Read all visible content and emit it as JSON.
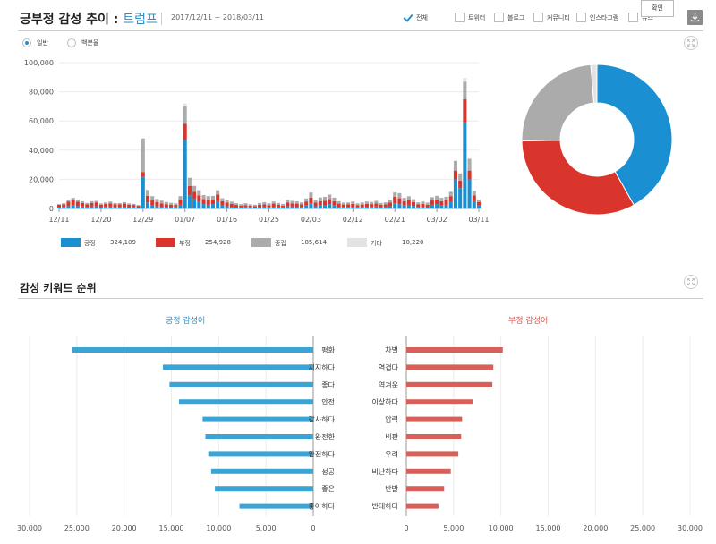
{
  "header": {
    "title": "긍부정 감성 추이",
    "colon": " : ",
    "subject": "트럼프",
    "date_range": "2017/12/11 ~ 2018/03/11",
    "filters": [
      {
        "label": "전체",
        "checked": true
      },
      {
        "label": "트위터",
        "checked": false
      },
      {
        "label": "블로그",
        "checked": false
      },
      {
        "label": "커뮤니티",
        "checked": false
      },
      {
        "label": "인스타그램",
        "checked": false
      },
      {
        "label": "뉴스",
        "checked": false
      }
    ],
    "confirm_label": "확인"
  },
  "view_options": [
    {
      "label": "일반",
      "selected": true
    },
    {
      "label": "백분율",
      "selected": false
    }
  ],
  "legend": [
    {
      "name": "긍정",
      "value": "324,109",
      "color": "#1a8fd1"
    },
    {
      "name": "부정",
      "value": "254,928",
      "color": "#d9352c"
    },
    {
      "name": "중립",
      "value": "185,614",
      "color": "#ababab"
    },
    {
      "name": "기타",
      "value": "10,220",
      "color": "#e3e3e3"
    }
  ],
  "keywords_section": {
    "title": "감성 키워드 순위",
    "positive_title": "긍정 감성어",
    "negative_title": "부정 감성어"
  },
  "chart_data": [
    {
      "type": "bar",
      "stacked": true,
      "title": "긍부정 감성 추이",
      "y_ticks": [
        "100,000",
        "80,000",
        "60,000",
        "40,000",
        "20,000",
        "0"
      ],
      "ylim": [
        0,
        100000
      ],
      "x_tick_labels": [
        "12/11",
        "12/20",
        "12/29",
        "01/07",
        "01/16",
        "01/25",
        "02/03",
        "02/12",
        "02/21",
        "03/02",
        "03/11"
      ],
      "x_tick_indices": [
        0,
        9,
        18,
        27,
        36,
        45,
        54,
        63,
        72,
        81,
        90
      ],
      "series": [
        {
          "name": "긍정",
          "color": "#1a8fd1",
          "values": [
            900,
            1100,
            1600,
            2300,
            1600,
            1300,
            1000,
            1300,
            1500,
            900,
            1100,
            1300,
            1000,
            1000,
            1200,
            900,
            800,
            600,
            22000,
            4200,
            2000,
            1500,
            1200,
            1000,
            900,
            800,
            2500,
            47000,
            9000,
            6500,
            4500,
            3000,
            2500,
            3000,
            5000,
            2000,
            1500,
            1200,
            900,
            700,
            800,
            700,
            600,
            900,
            1000,
            800,
            1200,
            900,
            700,
            1500,
            1300,
            1200,
            1000,
            2000,
            3500,
            1500,
            2000,
            2200,
            3000,
            2000,
            1200,
            1000,
            1000,
            1200,
            800,
            1000,
            1200,
            1100,
            1300,
            900,
            1000,
            1500,
            3500,
            3000,
            2000,
            2500,
            1800,
            1000,
            1200,
            900,
            2500,
            3000,
            2000,
            2500,
            4500,
            20000,
            14000,
            59000,
            20000,
            5000,
            2000
          ]
        },
        {
          "name": "부정",
          "color": "#d9352c",
          "values": [
            1600,
            1800,
            3200,
            3700,
            3000,
            2400,
            1800,
            2400,
            2700,
            1700,
            2000,
            2200,
            1800,
            1800,
            2100,
            1700,
            1600,
            1200,
            3000,
            4500,
            3500,
            2800,
            2300,
            1900,
            1700,
            1600,
            3800,
            11000,
            6500,
            5000,
            4500,
            3500,
            3500,
            3300,
            4500,
            3000,
            2500,
            2000,
            1500,
            1300,
            1500,
            1200,
            1100,
            1600,
            1800,
            1500,
            2100,
            1600,
            1300,
            2500,
            2200,
            2100,
            1800,
            2800,
            4000,
            2500,
            3000,
            3100,
            3500,
            3000,
            2100,
            1700,
            1800,
            2000,
            1500,
            1700,
            2000,
            1900,
            2200,
            1600,
            1800,
            2500,
            4500,
            4000,
            3000,
            3300,
            2600,
            1800,
            2000,
            1700,
            3000,
            3200,
            3000,
            3100,
            4000,
            6000,
            5000,
            16000,
            6000,
            4000,
            2400
          ]
        },
        {
          "name": "중립",
          "color": "#ababab",
          "values": [
            500,
            700,
            1200,
            1300,
            1400,
            1300,
            1000,
            1300,
            1000,
            900,
            1100,
            1300,
            900,
            900,
            1000,
            900,
            800,
            600,
            23000,
            4000,
            3000,
            2200,
            1900,
            1500,
            1300,
            1100,
            2200,
            12000,
            5500,
            4000,
            3500,
            2700,
            2500,
            2300,
            3000,
            2000,
            1700,
            1500,
            1200,
            1000,
            1300,
            1000,
            900,
            1300,
            1500,
            1300,
            1500,
            1300,
            1100,
            1900,
            1700,
            1600,
            1400,
            2100,
            3500,
            2000,
            2600,
            2700,
            3000,
            2400,
            1700,
            1300,
            1400,
            1600,
            1200,
            1400,
            1600,
            1500,
            1700,
            1300,
            1400,
            2000,
            3000,
            3500,
            2300,
            2600,
            2000,
            1400,
            1600,
            1400,
            2200,
            2500,
            2300,
            2400,
            3000,
            6500,
            5000,
            12000,
            8000,
            3000,
            1500
          ]
        },
        {
          "name": "기타",
          "color": "#e3e3e3",
          "values": [
            100,
            100,
            100,
            150,
            100,
            100,
            100,
            100,
            100,
            100,
            100,
            100,
            100,
            100,
            100,
            100,
            100,
            100,
            200,
            150,
            150,
            100,
            100,
            100,
            100,
            100,
            150,
            2000,
            300,
            200,
            200,
            100,
            100,
            100,
            150,
            100,
            100,
            100,
            100,
            100,
            100,
            100,
            100,
            100,
            100,
            100,
            100,
            100,
            100,
            100,
            100,
            100,
            100,
            100,
            150,
            100,
            100,
            100,
            150,
            100,
            100,
            100,
            100,
            100,
            100,
            100,
            100,
            100,
            100,
            100,
            100,
            100,
            200,
            200,
            100,
            100,
            100,
            100,
            100,
            100,
            150,
            150,
            150,
            150,
            200,
            500,
            300,
            2500,
            500,
            200,
            100
          ]
        }
      ]
    },
    {
      "type": "pie",
      "title": "",
      "labels": [
        "긍정",
        "부정",
        "중립",
        "기타"
      ],
      "values": [
        324109,
        254928,
        185614,
        10220
      ],
      "colors": [
        "#1a8fd1",
        "#d9352c",
        "#ababab",
        "#e3e3e3"
      ]
    },
    {
      "type": "bar",
      "orientation": "horizontal",
      "title": "긍정 감성어",
      "categories": [
        "평화",
        "지지하다",
        "좋다",
        "안전",
        "감사하다",
        "완전한",
        "완전하다",
        "성공",
        "좋은",
        "좋아하다"
      ],
      "values": [
        25500,
        15900,
        15200,
        14200,
        11700,
        11400,
        11100,
        10800,
        10400,
        7800
      ],
      "color": "#3aa4d4",
      "xlim": [
        0,
        30000
      ],
      "x_ticks": [
        "30,000",
        "25,000",
        "20,000",
        "15,000",
        "10,000",
        "5,000",
        "0"
      ]
    },
    {
      "type": "bar",
      "orientation": "horizontal",
      "title": "부정 감성어",
      "categories": [
        "차별",
        "역겹다",
        "역겨운",
        "이상하다",
        "압력",
        "비판",
        "우려",
        "비난하다",
        "반발",
        "반대하다"
      ],
      "values": [
        10200,
        9200,
        9100,
        7000,
        5900,
        5800,
        5500,
        4700,
        4000,
        3400
      ],
      "color": "#d9605a",
      "xlim": [
        0,
        30000
      ],
      "x_ticks": [
        "0",
        "5,000",
        "10,000",
        "15,000",
        "20,000",
        "25,000",
        "30,000"
      ]
    }
  ]
}
